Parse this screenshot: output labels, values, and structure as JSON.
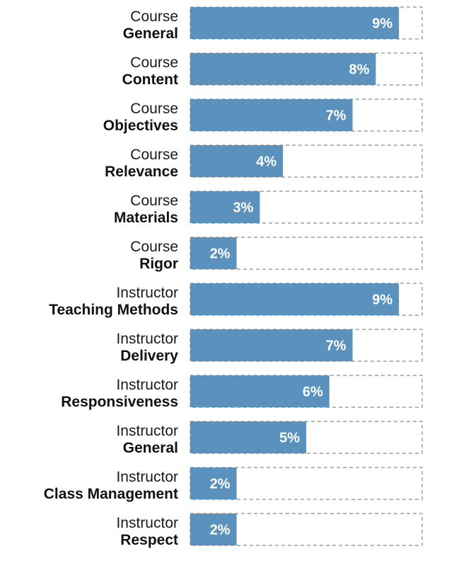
{
  "chart_data": {
    "type": "bar",
    "orientation": "horizontal",
    "categories": [
      {
        "group": "Course",
        "name": "General"
      },
      {
        "group": "Course",
        "name": "Content"
      },
      {
        "group": "Course",
        "name": "Objectives"
      },
      {
        "group": "Course",
        "name": "Relevance"
      },
      {
        "group": "Course",
        "name": "Materials"
      },
      {
        "group": "Course",
        "name": "Rigor"
      },
      {
        "group": "Instructor",
        "name": "Teaching Methods"
      },
      {
        "group": "Instructor",
        "name": "Delivery"
      },
      {
        "group": "Instructor",
        "name": "Responsiveness"
      },
      {
        "group": "Instructor",
        "name": "General"
      },
      {
        "group": "Instructor",
        "name": "Class Management"
      },
      {
        "group": "Instructor",
        "name": "Respect"
      }
    ],
    "values": [
      9,
      8,
      7,
      4,
      3,
      2,
      9,
      7,
      6,
      5,
      2,
      2
    ],
    "value_labels": [
      "9%",
      "8%",
      "7%",
      "4%",
      "3%",
      "2%",
      "9%",
      "7%",
      "6%",
      "5%",
      "2%",
      "2%"
    ],
    "xlim": [
      0,
      10
    ],
    "grid": false,
    "legend": "none",
    "bar_color": "#5b92bd",
    "track_color": "#8a8a8a",
    "label_color": "#111111",
    "value_label_color": "#ffffff"
  }
}
